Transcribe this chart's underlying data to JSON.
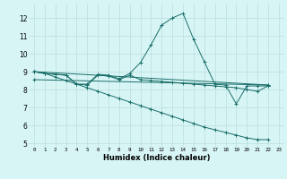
{
  "xlabel": "Humidex (Indice chaleur)",
  "bg_color": "#d8f5f5",
  "grid_color": "#b8dede",
  "line_color": "#1a6e6a",
  "xlim": [
    -0.5,
    23.5
  ],
  "ylim": [
    4.8,
    12.8
  ],
  "yticks": [
    5,
    6,
    7,
    8,
    9,
    10,
    11,
    12
  ],
  "xticks": [
    0,
    1,
    2,
    3,
    4,
    5,
    6,
    7,
    8,
    9,
    10,
    11,
    12,
    13,
    14,
    15,
    16,
    17,
    18,
    19,
    20,
    21,
    22,
    23
  ],
  "series": [
    {
      "x": [
        0,
        1,
        2,
        3,
        4,
        5,
        6,
        7,
        8,
        9,
        10,
        11,
        12,
        13,
        14,
        15,
        16,
        17,
        18,
        19,
        20,
        21,
        22
      ],
      "y": [
        9.0,
        8.9,
        8.85,
        8.8,
        8.3,
        8.3,
        8.85,
        8.8,
        8.6,
        8.9,
        9.5,
        10.5,
        11.6,
        12.0,
        12.25,
        10.8,
        9.55,
        8.3,
        8.25,
        7.2,
        8.2,
        8.2,
        8.2
      ]
    },
    {
      "x": [
        0,
        22
      ],
      "y": [
        9.0,
        8.25
      ]
    },
    {
      "x": [
        0,
        22
      ],
      "y": [
        8.55,
        8.25
      ]
    },
    {
      "x": [
        0,
        1,
        2,
        3,
        4,
        5,
        6,
        7,
        8,
        9,
        10,
        11,
        12,
        13,
        14,
        15,
        16,
        17,
        18,
        19,
        20,
        21,
        22
      ],
      "y": [
        9.0,
        8.9,
        8.85,
        8.8,
        8.3,
        8.25,
        8.8,
        8.75,
        8.55,
        8.8,
        8.55,
        8.5,
        8.45,
        8.4,
        8.35,
        8.3,
        8.25,
        8.2,
        8.15,
        8.1,
        8.0,
        7.9,
        8.2
      ]
    },
    {
      "x": [
        0,
        1,
        2,
        3,
        4,
        5,
        6,
        7,
        8,
        9,
        10,
        11,
        12,
        13,
        14,
        15,
        16,
        17,
        18,
        19,
        20,
        21,
        22
      ],
      "y": [
        9.0,
        8.9,
        8.7,
        8.5,
        8.3,
        8.1,
        7.9,
        7.7,
        7.5,
        7.3,
        7.1,
        6.9,
        6.7,
        6.5,
        6.3,
        6.1,
        5.9,
        5.75,
        5.6,
        5.45,
        5.3,
        5.2,
        5.2
      ]
    }
  ]
}
